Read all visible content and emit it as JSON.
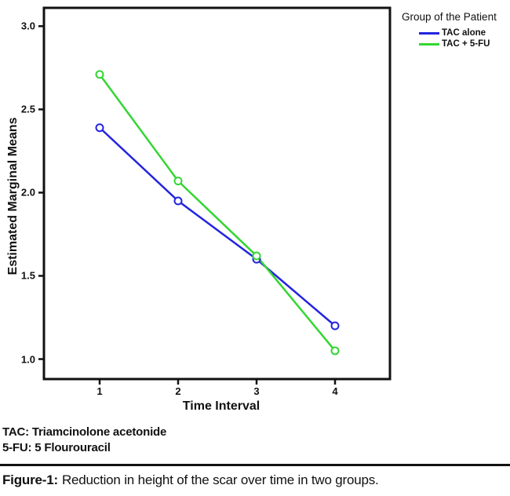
{
  "figure": {
    "legend": {
      "title": "Group of the Patient",
      "items": [
        {
          "label": "TAC alone",
          "color": "#2424e0"
        },
        {
          "label": "TAC + 5-FU",
          "color": "#33d633"
        }
      ]
    },
    "notes": [
      "TAC: Triamcinolone acetonide",
      "5-FU: 5 Flourouracil"
    ],
    "caption": {
      "label": "Figure-1:",
      "text": "Reduction in height of the scar over time in two groups."
    }
  },
  "chart_data": {
    "type": "line",
    "title": "",
    "xlabel": "Time Interval",
    "ylabel": "Estimated Marginal Means",
    "x": [
      1,
      2,
      3,
      4
    ],
    "series": [
      {
        "name": "TAC alone",
        "color": "#2424e0",
        "values": [
          2.39,
          1.95,
          1.6,
          1.2
        ]
      },
      {
        "name": "TAC + 5-FU",
        "color": "#33d633",
        "values": [
          2.71,
          2.07,
          1.62,
          1.05
        ]
      }
    ],
    "x_ticks": [
      1,
      2,
      3,
      4
    ],
    "y_ticks": [
      1.0,
      1.5,
      2.0,
      2.5,
      3.0
    ],
    "xlim": [
      0.29,
      4.7
    ],
    "ylim": [
      0.88,
      3.11
    ],
    "grid": false,
    "legend_position": "top-right",
    "marker": "open-circle",
    "axis_color": "#111111"
  }
}
